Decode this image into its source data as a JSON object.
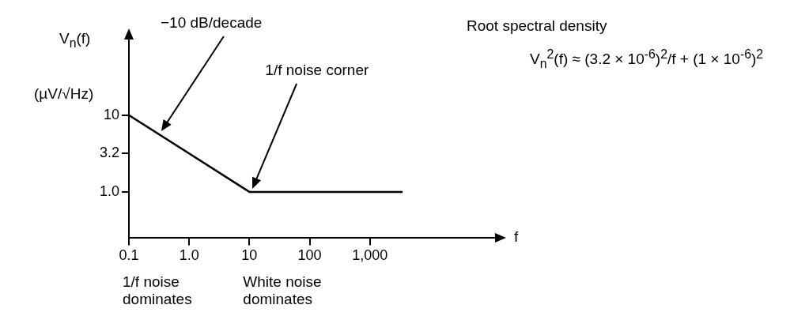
{
  "chart_data": {
    "type": "line",
    "title": "Root spectral density",
    "ylabel": "V$_{n}$(f)",
    "xlabel": "f",
    "annotations": [
      "−10 dB/decade",
      "1/f noise corner",
      "(µV/√Hz)",
      "V$_{n}$$^{2}$(f) ≈ (3.2 × 10$^{-6}$)$^{2}$/f + (1 × 10$^{-6}$)$^{2}$",
      "1/f noise dominates",
      "White noise dominates"
    ],
    "x": [
      0.1,
      10,
      3500
    ],
    "series": [
      {
        "color": "#000000",
        "values": [
          10,
          1.0,
          1.0
        ]
      }
    ],
    "log": "xy",
    "xlim": [
      0.1,
      100000
    ],
    "ylim": [
      0.25,
      80
    ],
    "xticks": [
      0.1,
      {
        "value": 1,
        "label": "1.0"
      },
      10,
      100,
      {
        "value": 1000,
        "label": "1,000"
      }
    ],
    "yticks": [
      10,
      3.2,
      {
        "value": 1,
        "label": "1.0"
      }
    ],
    "grid": false,
    "legend": false,
    "marker": "none",
    "line_style": "solid"
  }
}
